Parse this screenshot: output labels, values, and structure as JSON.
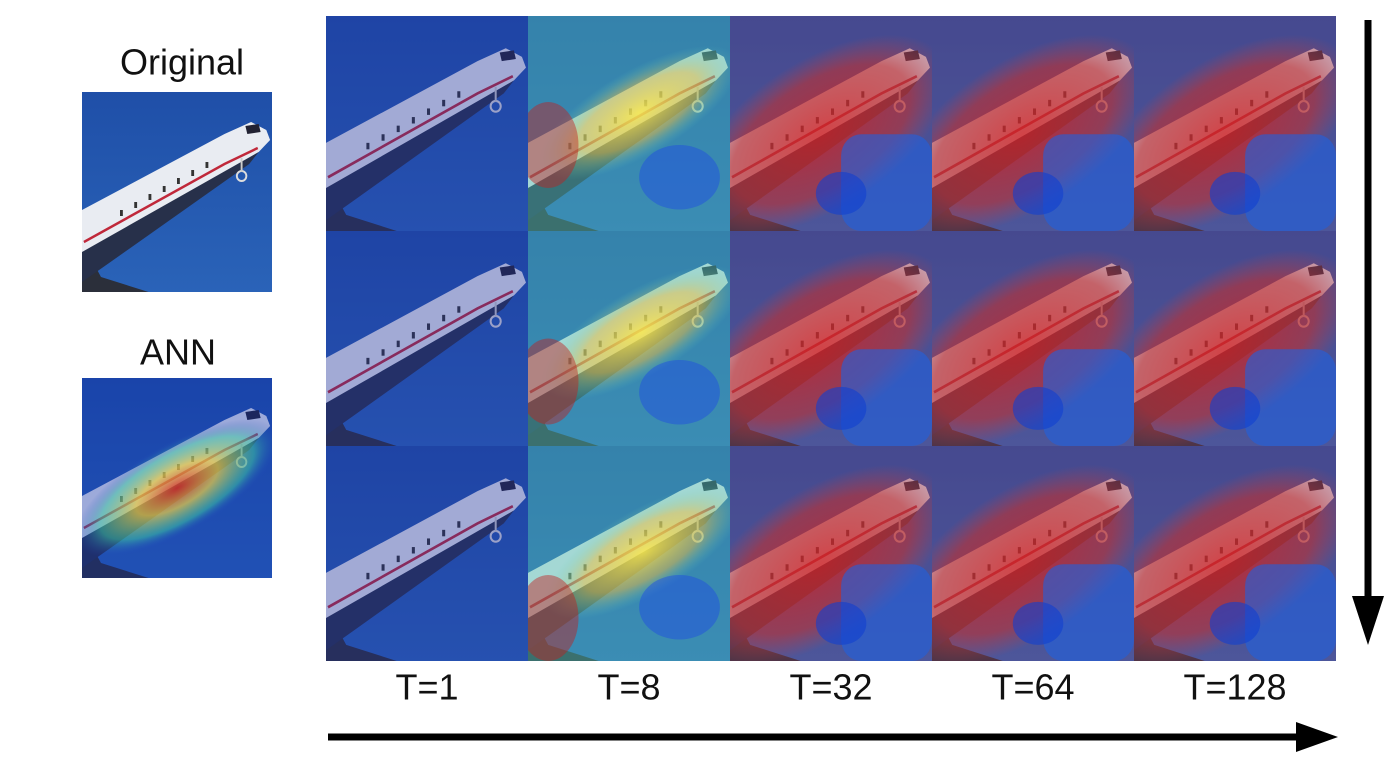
{
  "side_panels": [
    {
      "label": "Original"
    },
    {
      "label": "ANN"
    }
  ],
  "columns": [
    {
      "label": "T=1"
    },
    {
      "label": "T=8"
    },
    {
      "label": "T=32"
    },
    {
      "label": "T=64"
    },
    {
      "label": "T=128"
    }
  ]
}
